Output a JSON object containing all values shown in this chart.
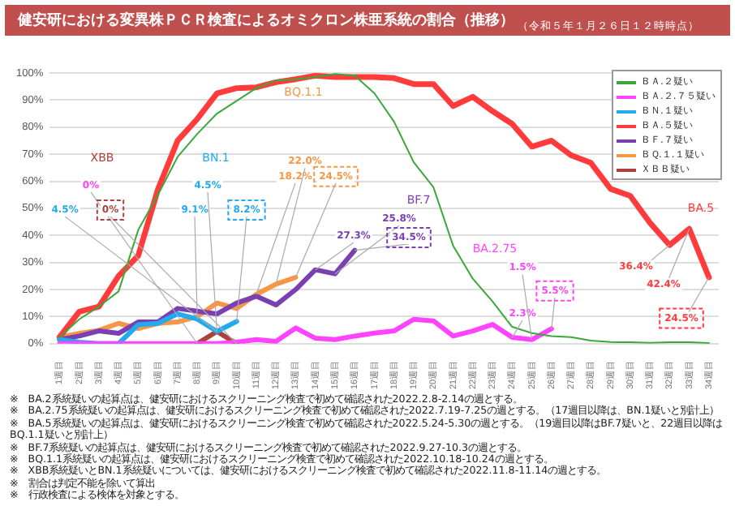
{
  "chart_data": {
    "type": "line",
    "title": "健安研における変異株ＰＣＲ検査によるオミクロン株亜系統の割合（推移）",
    "subtitle": "（令和５年１月２６日１２時時点）",
    "categories": [
      "1週目",
      "2週目",
      "3週目",
      "4週目",
      "5週目",
      "6週目",
      "7週目",
      "8週目",
      "9週目",
      "10週目",
      "11週目",
      "12週目",
      "13週目",
      "14週目",
      "15週目",
      "16週目",
      "17週目",
      "18週目",
      "19週目",
      "20週目",
      "21週目",
      "22週目",
      "23週目",
      "24週目",
      "25週目",
      "26週目",
      "27週目",
      "28週目",
      "29週目",
      "30週目",
      "31週目",
      "32週目",
      "33週目",
      "34週目"
    ],
    "series": [
      {
        "name": "ＢＡ.２疑い",
        "color": "#3aa83a",
        "values": [
          2.4,
          9,
          13.7,
          19.3,
          42,
          55,
          69,
          77.5,
          85,
          89.7,
          94.4,
          97.2,
          97.7,
          98.5,
          99.6,
          99,
          92.5,
          82,
          67,
          57.8,
          36.2,
          24,
          15.6,
          6.2,
          3.9,
          2.8,
          2.4,
          1.1,
          0.6,
          0.5,
          0.3,
          0.5,
          0.5,
          0.2
        ]
      },
      {
        "name": "ＢＡ.２.７５疑い",
        "color": "#ff44ff",
        "values": [
          0,
          0,
          0,
          0,
          0,
          0,
          0,
          0,
          0,
          0.5,
          1.5,
          0.8,
          5.8,
          2,
          1.5,
          2.8,
          3.9,
          4.7,
          9,
          8.4,
          2.8,
          4.7,
          7.1,
          2.3,
          1.5,
          5.5,
          null,
          null,
          null,
          null,
          null,
          null,
          null,
          null
        ]
      },
      {
        "name": "ＢＮ.１疑い",
        "color": "#22aaee",
        "values": [
          1.5,
          0.5,
          0,
          0,
          7,
          7.5,
          11,
          9.1,
          4.5,
          8.2,
          null,
          null,
          null,
          null,
          null,
          null,
          null,
          null,
          null,
          null,
          null,
          null,
          null,
          null,
          null,
          null,
          null,
          null,
          null,
          null,
          null,
          null,
          null,
          null
        ]
      },
      {
        "name": "ＢＡ.５疑い",
        "color": "#ff3b3b",
        "values": [
          2.4,
          11.8,
          13.7,
          25,
          32.5,
          57,
          75,
          83,
          92.5,
          94.4,
          94.7,
          96.6,
          97.7,
          99,
          98.5,
          98.5,
          98.5,
          98.1,
          95.9,
          95.9,
          87.8,
          91.2,
          85.9,
          81.2,
          72.8,
          75,
          69.6,
          66.8,
          57.2,
          54.6,
          44.7,
          36.4,
          42.4,
          24.5
        ]
      },
      {
        "name": "ＢＦ.７疑い",
        "color": "#7a3fb0",
        "values": [
          1.5,
          2.8,
          4.7,
          3.8,
          8,
          8,
          13,
          12,
          11,
          15,
          17.5,
          14.3,
          20,
          27.3,
          25.8,
          34.5,
          null,
          null,
          null,
          null,
          null,
          null,
          null,
          null,
          null,
          null,
          null,
          null,
          null,
          null,
          null,
          null,
          null,
          null
        ]
      },
      {
        "name": "ＢＱ.１.１疑い",
        "color": "#f79646",
        "values": [
          2.4,
          3.8,
          4.9,
          7.5,
          5.6,
          7.5,
          8,
          10,
          15,
          13,
          18.2,
          22,
          24.5,
          null,
          null,
          null,
          null,
          null,
          null,
          null,
          null,
          null,
          null,
          null,
          null,
          null,
          null,
          null,
          null,
          null,
          null,
          null,
          null,
          null
        ]
      },
      {
        "name": "ＸＢＢ疑い",
        "color": "#b0403c",
        "values": [
          null,
          null,
          null,
          null,
          null,
          null,
          null,
          0,
          4.5,
          0,
          null,
          null,
          null,
          null,
          null,
          null,
          null,
          null,
          null,
          null,
          null,
          null,
          null,
          null,
          null,
          null,
          null,
          null,
          null,
          null,
          null,
          null,
          null,
          null
        ]
      }
    ],
    "ylim": [
      0,
      100
    ],
    "yticks": [
      {
        "value": 0,
        "label": "0%"
      },
      {
        "value": 10,
        "label": "10%"
      },
      {
        "value": 20,
        "label": "20%"
      },
      {
        "value": 30,
        "label": "30%"
      },
      {
        "value": 40,
        "label": "40%"
      },
      {
        "value": 50,
        "label": "50%"
      },
      {
        "value": 60,
        "label": "60%"
      },
      {
        "value": 70,
        "label": "70%"
      },
      {
        "value": 80,
        "label": "80%"
      },
      {
        "value": 90,
        "label": "90%"
      },
      {
        "value": 100,
        "label": "100%"
      }
    ],
    "grid": "y",
    "legend": "top right",
    "marker": "none",
    "annotations": [
      "XBB",
      "BN.1",
      "BQ.1.1",
      "BF.7",
      "BA.2.75",
      "BA.5",
      {
        "text": "0%",
        "x": "8週目",
        "y": 0
      },
      {
        "text": "4.5%",
        "x": "9週目",
        "y": 4.5
      },
      {
        "text": "0%",
        "x": "10週目",
        "y": 0
      },
      {
        "text": "9.1%",
        "x": "8週目",
        "y": 9.1
      },
      {
        "text": "4.5%",
        "x": "9週目",
        "y": 4.5
      },
      {
        "text": "8.2%",
        "x": "10週目",
        "y": 8.2
      },
      {
        "text": "18.2%",
        "x": "11週目",
        "y": 18.2
      },
      {
        "text": "22.0%",
        "x": "12週目",
        "y": 22
      },
      {
        "text": "24.5%",
        "x": "13週目",
        "y": 24.5
      },
      {
        "text": "27.3%",
        "x": "14週目",
        "y": 27.3
      },
      {
        "text": "25.8%",
        "x": "15週目",
        "y": 25.8
      },
      {
        "text": "34.5%",
        "x": "16週目",
        "y": 34.5
      },
      {
        "text": "2.3%",
        "x": "24週目",
        "y": 2.3
      },
      {
        "text": "1.5%",
        "x": "25週目",
        "y": 1.5
      },
      {
        "text": "5.5%",
        "x": "26週目",
        "y": 5.5
      },
      {
        "text": "36.4%",
        "x": "32週目",
        "y": 36.4
      },
      {
        "text": "42.4%",
        "x": "33週目",
        "y": 42.4
      },
      {
        "text": "24.5%",
        "x": "34週目",
        "y": 24.5
      },
      "※　BA.2系統疑いの起算点は、健安研におけるスクリーニング検査で初めて確認された2022.2.8-2.14の週とする。",
      "※　BA.2.75系統疑いの起算点は、健安研におけるスクリーニング検査で初めて確認された2022.7.19-7.25の週とする。（17週目以降は、BN.1疑いと別計上）",
      "※　BA.5系統疑いの起算点は、健安研におけるスクリーニング検査で初めて確認された2022.5.24-5.30の週とする。（19週目以降はBF.7疑いと、22週目以降はBQ.1.1疑いと別計上）",
      "※　BF.7系統疑いの起算点は、健安研におけるスクリーニング検査で初めて確認された2022.9.27-10.3の週とする。",
      "※　BQ.1.1系統疑いの起算点は、健安研におけるスクリーニング検査で初めて確認された2022.10.18-10.24の週とする。",
      "※　XBB系統疑いとBN.1系統疑いについては、健安研におけるスクリーニング検査で初めて確認された2022.11.8-11.14の週とする。",
      "※　割合は判定不能を除いて算出",
      "※　行政検査による検体を対象とする。"
    ]
  }
}
